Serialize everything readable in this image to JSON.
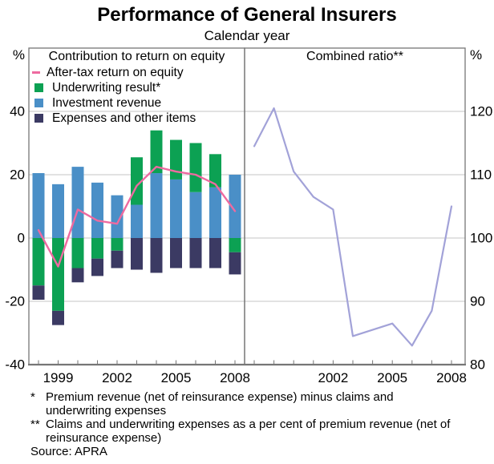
{
  "page": {
    "title": "Performance of General Insurers",
    "subtitle": "Calendar year"
  },
  "footnotes": [
    {
      "marker": "*",
      "text": "Premium revenue (net of reinsurance expense) minus claims and underwriting expenses"
    },
    {
      "marker": "**",
      "text": "Claims and underwriting expenses as a per cent of premium revenue (net of reinsurance expense)"
    }
  ],
  "source": "Source: APRA",
  "colors": {
    "grid": "#c6c6c6",
    "axis": "#767676"
  },
  "chart_data": [
    {
      "type": "bar",
      "panel": "left",
      "title": "Contribution to return on equity",
      "unit": "%",
      "ylim": [
        -40,
        60
      ],
      "yticks": [
        40,
        20,
        0,
        -20,
        -40
      ],
      "years": [
        1998,
        1999,
        2000,
        2001,
        2002,
        2003,
        2004,
        2005,
        2006,
        2007,
        2008
      ],
      "xtick_years": [
        1999,
        2002,
        2005,
        2008
      ],
      "series": [
        {
          "name": "Underwriting result*",
          "color": "#0ca153",
          "values": [
            -15,
            -23,
            -9.5,
            -6.5,
            -4,
            15,
            13.5,
            12.5,
            15.5,
            10.5,
            -4.5
          ]
        },
        {
          "name": "Investment revenue",
          "color": "#4a8fc7",
          "values": [
            20.5,
            17,
            22.5,
            17.5,
            13.5,
            10.5,
            20.5,
            18.5,
            14.5,
            16,
            20
          ]
        },
        {
          "name": "Expenses and other items",
          "color": "#3b3a63",
          "values": [
            -4.5,
            -4.5,
            -4.5,
            -5.5,
            -5.5,
            -10,
            -11,
            -9.5,
            -9.5,
            -9.5,
            -7
          ]
        }
      ],
      "line_series": {
        "name": "After-tax return on equity",
        "color": "#ee6aa0",
        "values": [
          2.5,
          -9,
          9,
          5.5,
          4.5,
          16.5,
          22.5,
          21,
          20,
          17,
          8.5
        ]
      }
    },
    {
      "type": "line",
      "panel": "right",
      "title": "Combined ratio**",
      "unit": "%",
      "ylim": [
        80,
        130
      ],
      "yticks": [
        120,
        110,
        100,
        90,
        80
      ],
      "years": [
        1998,
        1999,
        2000,
        2001,
        2002,
        2003,
        2004,
        2005,
        2006,
        2007,
        2008
      ],
      "xtick_years": [
        2002,
        2005,
        2008
      ],
      "line_series": {
        "name": "Combined ratio",
        "color": "#a2a2d8",
        "values": [
          114.5,
          120.5,
          110.5,
          106.5,
          104.5,
          84.5,
          85.5,
          86.5,
          83,
          88.5,
          105
        ]
      }
    }
  ]
}
